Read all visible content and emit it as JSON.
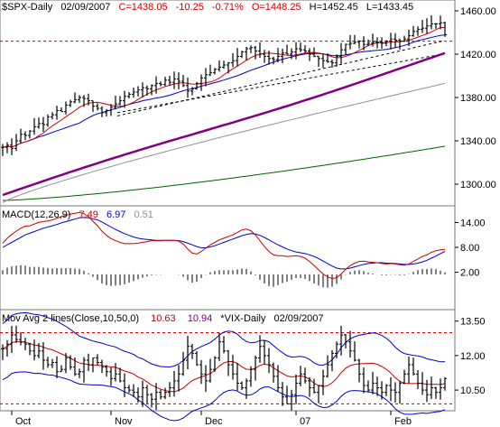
{
  "chart_data": [
    {
      "type": "ohlc",
      "header": {
        "symbol": "$SPX-Daily",
        "date": "02/09/2007",
        "close": "C=1438.05",
        "change": "-10.25",
        "pct": "-0.71%",
        "open": "O=1448.25",
        "high": "H=1452.45",
        "low": "L=1433.45"
      },
      "ylim": [
        1280,
        1470
      ],
      "y_ticks": [
        "1460.00",
        "1420.00",
        "1380.00",
        "1340.00",
        "1300.00"
      ],
      "y_tick_values": [
        1460,
        1420,
        1380,
        1340,
        1300
      ],
      "resistance": 1432,
      "trend_top": {
        "x": [
          130,
          490
        ],
        "y": [
          1363,
          1432
        ]
      },
      "trend_bottom": {
        "x": [
          130,
          490
        ],
        "y": [
          1366,
          1420
        ]
      },
      "closes": [
        1334,
        1336,
        1333,
        1340,
        1346,
        1345,
        1349,
        1353,
        1356,
        1355,
        1362,
        1364,
        1368,
        1367,
        1373,
        1376,
        1378,
        1380,
        1379,
        1377,
        1372,
        1370,
        1366,
        1368,
        1371,
        1374,
        1377,
        1381,
        1383,
        1385,
        1387,
        1389,
        1388,
        1391,
        1393,
        1392,
        1396,
        1394,
        1397,
        1395,
        1391,
        1386,
        1388,
        1393,
        1398,
        1401,
        1403,
        1406,
        1408,
        1410,
        1412,
        1414,
        1418,
        1422,
        1425,
        1426,
        1423,
        1420,
        1418,
        1416,
        1415,
        1418,
        1421,
        1420,
        1422,
        1425,
        1424,
        1423,
        1420,
        1418,
        1416,
        1414,
        1413,
        1412,
        1418,
        1424,
        1429,
        1430,
        1431,
        1432,
        1429,
        1430,
        1431,
        1431,
        1430,
        1432,
        1434,
        1433,
        1432,
        1434,
        1437,
        1441,
        1443,
        1444,
        1446,
        1448,
        1448,
        1449,
        1438
      ],
      "vol": 8,
      "colors": {
        "bars": "#000000",
        "ma_red": "#cc0000",
        "ma_blue": "#0000cc",
        "ma_purple": "#800080",
        "ma_gray": "#909090",
        "ma_green": "#006400",
        "resistance": "#cc0000"
      }
    },
    {
      "type": "line",
      "title": "MACD(12,26,9)",
      "values_text": [
        "7.49",
        "6.97",
        "0.51"
      ],
      "ylim": [
        -7,
        18
      ],
      "y_ticks": [
        "14.00",
        "8.00",
        "2.00"
      ],
      "y_tick_values": [
        14,
        8,
        2
      ],
      "series": [
        {
          "values": [
            9.0,
            10.2,
            11.1,
            11.9,
            12.6,
            13.1,
            13.2,
            13.6,
            14.0,
            14.2,
            14.4,
            14.6,
            15.0,
            15.4,
            15.7,
            16.0,
            16.2,
            16.4,
            16.1,
            15.4,
            14.3,
            13.2,
            11.9,
            10.9,
            10.1,
            9.6,
            9.2,
            8.9,
            8.9,
            8.9,
            9.0,
            9.2,
            9.4,
            9.6,
            9.6,
            9.6,
            9.7,
            9.7,
            9.7,
            9.5,
            8.8,
            7.6,
            6.6,
            6.4,
            7.0,
            7.8,
            8.6,
            9.2,
            9.8,
            10.2,
            10.6,
            11.0,
            11.6,
            12.2,
            12.4,
            12.0,
            11.0,
            9.6,
            8.2,
            7.0,
            6.2,
            6.0,
            6.0,
            5.8,
            5.9,
            6.0,
            5.8,
            5.4,
            4.6,
            3.6,
            2.6,
            1.6,
            0.9,
            0.5,
            0.7,
            1.6,
            2.7,
            3.6,
            4.2,
            4.6,
            4.7,
            4.5,
            4.4,
            4.3,
            4.1,
            4.0,
            4.1,
            4.0,
            3.8,
            3.7,
            4.0,
            4.6,
            5.2,
            5.8,
            6.2,
            6.8,
            7.2,
            7.4,
            7.5
          ]
        },
        {
          "values": [
            8.0,
            8.6,
            9.2,
            9.8,
            10.4,
            11.0,
            11.4,
            11.8,
            12.2,
            12.6,
            12.9,
            13.2,
            13.5,
            13.9,
            14.2,
            14.5,
            14.8,
            15.1,
            15.2,
            15.1,
            14.9,
            14.6,
            14.1,
            13.5,
            12.9,
            12.3,
            11.8,
            11.3,
            10.9,
            10.5,
            10.2,
            10.0,
            9.9,
            9.8,
            9.7,
            9.7,
            9.7,
            9.7,
            9.7,
            9.6,
            9.4,
            9.0,
            8.6,
            8.2,
            7.9,
            7.9,
            8.1,
            8.4,
            8.8,
            9.2,
            9.6,
            10.0,
            10.4,
            10.8,
            11.1,
            11.3,
            11.2,
            10.9,
            10.4,
            9.8,
            9.2,
            8.6,
            8.1,
            7.6,
            7.2,
            6.9,
            6.7,
            6.5,
            6.2,
            5.8,
            5.3,
            4.7,
            4.1,
            3.5,
            3.0,
            2.8,
            2.8,
            3.0,
            3.3,
            3.6,
            3.9,
            4.1,
            4.2,
            4.3,
            4.3,
            4.2,
            4.2,
            4.1,
            4.0,
            3.9,
            3.9,
            4.0,
            4.2,
            4.5,
            4.9,
            5.4,
            5.9,
            6.5,
            7.0
          ]
        }
      ],
      "histogram": [
        1.0,
        1.6,
        1.9,
        2.1,
        2.2,
        2.1,
        1.8,
        1.8,
        1.8,
        1.6,
        1.5,
        1.4,
        1.5,
        1.5,
        1.5,
        1.5,
        1.4,
        1.3,
        0.9,
        0.3,
        -0.6,
        -1.4,
        -2.2,
        -2.6,
        -2.8,
        -2.7,
        -2.6,
        -2.4,
        -2.0,
        -1.6,
        -1.2,
        -0.8,
        -0.5,
        -0.2,
        -0.1,
        -0.1,
        0.0,
        0.0,
        0.0,
        -0.1,
        -0.6,
        -1.4,
        -2.0,
        -1.8,
        -0.9,
        -0.1,
        0.5,
        0.8,
        1.0,
        1.0,
        1.0,
        1.0,
        1.2,
        1.4,
        1.3,
        0.7,
        -0.2,
        -1.3,
        -2.2,
        -2.8,
        -3.0,
        -2.6,
        -2.1,
        -1.8,
        -1.3,
        -0.9,
        -0.9,
        -1.1,
        -1.6,
        -2.2,
        -2.7,
        -3.1,
        -3.2,
        -3.0,
        -2.3,
        -1.2,
        -0.1,
        0.6,
        0.9,
        1.0,
        0.8,
        0.4,
        0.2,
        0.0,
        -0.2,
        -0.2,
        -0.1,
        -0.1,
        -0.2,
        -0.2,
        0.1,
        0.6,
        1.0,
        1.3,
        1.3,
        1.4,
        1.3,
        0.9,
        0.5
      ],
      "colors": {
        "macd": "#cc0000",
        "signal": "#0000cc",
        "hist": "#808080"
      }
    },
    {
      "type": "ohlc",
      "title": "Mov Avg 2 lines(Close,10,50,0)",
      "values_text": [
        "10.63",
        "10.94",
        "*VIX-Daily",
        "02/09/2007"
      ],
      "ylim": [
        9.6,
        14.0
      ],
      "y_ticks": [
        "13.50",
        "12.00",
        "10.50"
      ],
      "y_tick_values": [
        13.5,
        12.0,
        10.5
      ],
      "band_high": 13.0,
      "band_low": 9.9,
      "closes": [
        12.3,
        12.5,
        12.9,
        12.7,
        12.6,
        12.5,
        12.2,
        12.0,
        12.2,
        11.8,
        11.6,
        11.7,
        11.3,
        11.4,
        11.9,
        11.5,
        11.2,
        11.3,
        11.8,
        11.6,
        11.9,
        11.7,
        11.5,
        11.3,
        11.0,
        11.2,
        10.9,
        10.6,
        10.5,
        10.4,
        10.2,
        10.6,
        10.3,
        10.1,
        10.4,
        10.2,
        10.4,
        10.6,
        10.9,
        11.2,
        11.8,
        12.4,
        12.1,
        11.6,
        11.2,
        10.9,
        11.4,
        11.9,
        12.6,
        12.2,
        11.6,
        11.2,
        10.8,
        10.6,
        10.9,
        11.4,
        11.9,
        12.4,
        12.0,
        11.6,
        11.1,
        10.6,
        10.2,
        9.9,
        10.3,
        10.8,
        11.2,
        10.9,
        10.6,
        10.4,
        10.7,
        11.1,
        11.6,
        12.1,
        12.5,
        12.9,
        12.6,
        12.2,
        11.8,
        11.2,
        10.7,
        10.5,
        10.8,
        10.6,
        10.4,
        10.7,
        10.5,
        10.4,
        10.8,
        11.2,
        11.6,
        11.2,
        10.8,
        10.5,
        10.3,
        10.6,
        10.4,
        10.6,
        11.0
      ],
      "vol": 0.5,
      "colors": {
        "bars": "#000000",
        "ma_red": "#cc0000",
        "ma_blue": "#0000cc",
        "band": "#cc0000"
      }
    }
  ],
  "x_axis": {
    "labels": [
      "Oct",
      "Nov",
      "Dec",
      "07",
      "Feb"
    ],
    "label_index": [
      2,
      24,
      44,
      65,
      86
    ]
  }
}
